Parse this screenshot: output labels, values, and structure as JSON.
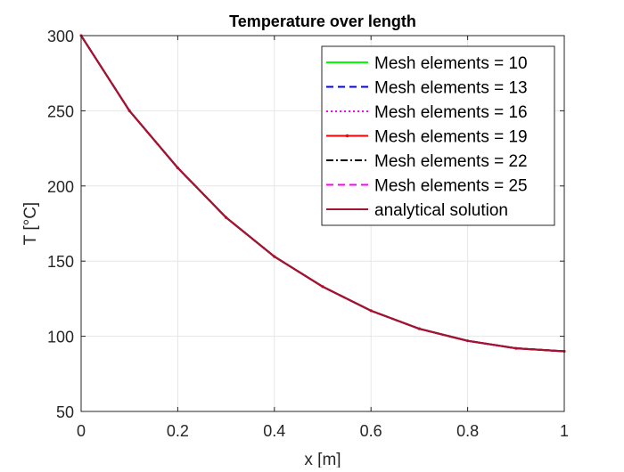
{
  "chart_data": {
    "type": "line",
    "title": "Temperature over length",
    "xlabel": "x [m]",
    "ylabel": "T [°C]",
    "xlim": [
      0,
      1
    ],
    "ylim": [
      50,
      300
    ],
    "xticks": [
      0,
      0.2,
      0.4,
      0.6,
      0.8,
      1
    ],
    "xtick_labels": [
      "0",
      "0.2",
      "0.4",
      "0.6",
      "0.8",
      "1"
    ],
    "yticks": [
      50,
      100,
      150,
      200,
      250,
      300
    ],
    "ytick_labels": [
      "50",
      "100",
      "150",
      "200",
      "250",
      "300"
    ],
    "grid": true,
    "legend_position": "top-right",
    "x": [
      0,
      0.1,
      0.2,
      0.3,
      0.4,
      0.5,
      0.6,
      0.7,
      0.8,
      0.9,
      1.0
    ],
    "series": [
      {
        "name": "Mesh elements = 10",
        "color": "#00ff00",
        "style": "solid",
        "values": [
          300,
          250,
          212,
          179,
          153,
          133,
          117,
          105,
          97,
          92,
          90
        ]
      },
      {
        "name": "Mesh elements = 13",
        "color": "#0000ff",
        "style": "dashed",
        "values": [
          300,
          250,
          212,
          179,
          153,
          133,
          117,
          105,
          97,
          92,
          90
        ]
      },
      {
        "name": "Mesh elements = 16",
        "color": "#ff00ff",
        "style": "dotted",
        "values": [
          300,
          250,
          212,
          179,
          153,
          133,
          117,
          105,
          97,
          92,
          90
        ]
      },
      {
        "name": "Mesh elements = 19",
        "color": "#ff0000",
        "style": "solid-dots",
        "values": [
          300,
          250,
          212,
          179,
          153,
          133,
          117,
          105,
          97,
          92,
          90
        ]
      },
      {
        "name": "Mesh elements = 22",
        "color": "#000000",
        "style": "dashdot",
        "values": [
          300,
          250,
          212,
          179,
          153,
          133,
          117,
          105,
          97,
          92,
          90
        ]
      },
      {
        "name": "Mesh elements = 25",
        "color": "#ff00ff",
        "style": "dashed",
        "values": [
          300,
          250,
          212,
          179,
          153,
          133,
          117,
          105,
          97,
          92,
          90
        ]
      },
      {
        "name": "analytical solution",
        "color": "#a2142f",
        "style": "solid",
        "values": [
          300,
          250,
          212,
          179,
          153,
          133,
          117,
          105,
          97,
          92,
          90
        ]
      }
    ]
  }
}
